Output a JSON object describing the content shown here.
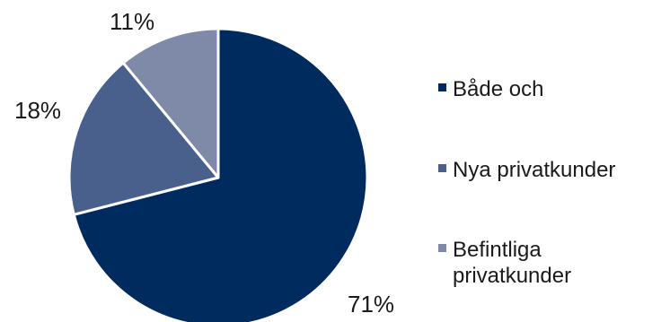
{
  "chart_data": {
    "type": "pie",
    "title": "",
    "legend_position": "right",
    "slices": [
      {
        "label": "Både och",
        "value": 71,
        "display": "71%",
        "color": "#002B5E"
      },
      {
        "label": "Nya privatkunder",
        "value": 18,
        "display": "18%",
        "color": "#4A608C"
      },
      {
        "label": "Befintliga privatkunder",
        "value": 11,
        "display": "11%",
        "color": "#7F8AA8"
      }
    ],
    "legend_lines": [
      [
        "Både och"
      ],
      [
        "Nya privatkunder"
      ],
      [
        "Befintliga",
        "privatkunder"
      ]
    ]
  }
}
